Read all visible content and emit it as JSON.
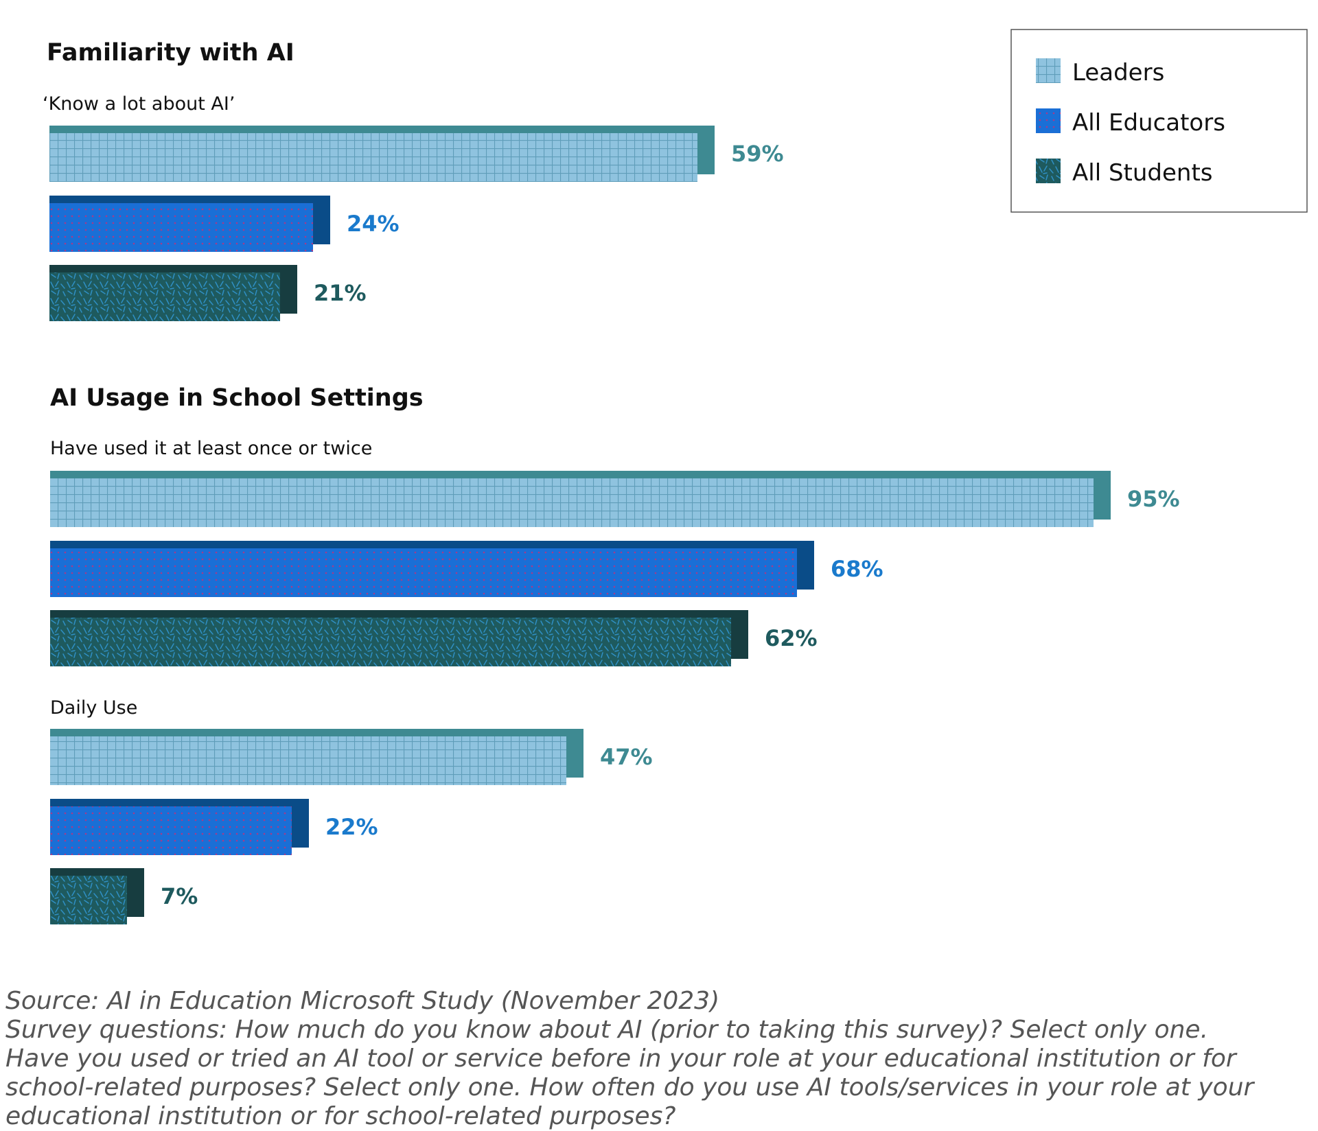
{
  "chart_data": {
    "type": "bar",
    "orientation": "horizontal",
    "legend": {
      "position": "top-right",
      "entries": [
        "Leaders",
        "All Educators",
        "All Students"
      ]
    },
    "series_colors": {
      "Leaders": "#8fc3df",
      "All Educators": "#1a6fd6",
      "All Students": "#1e5a5e"
    },
    "value_label_colors": {
      "Leaders": "#3e8a92",
      "All Educators": "#1a7acc",
      "All Students": "#1e5a5e"
    },
    "xlim": [
      0,
      100
    ],
    "value_suffix": "%",
    "sections": [
      {
        "title": "Familiarity with AI",
        "groups": [
          {
            "label": "‘Know a lot about AI’",
            "bars": [
              {
                "series": "Leaders",
                "value": 59,
                "label": "59%"
              },
              {
                "series": "All Educators",
                "value": 24,
                "label": "24%"
              },
              {
                "series": "All Students",
                "value": 21,
                "label": "21%"
              }
            ]
          }
        ]
      },
      {
        "title": "AI Usage in School Settings",
        "groups": [
          {
            "label": "Have used it at least once or twice",
            "bars": [
              {
                "series": "Leaders",
                "value": 95,
                "label": "95%"
              },
              {
                "series": "All Educators",
                "value": 68,
                "label": "68%"
              },
              {
                "series": "All Students",
                "value": 62,
                "label": "62%"
              }
            ]
          },
          {
            "label": "Daily Use",
            "bars": [
              {
                "series": "Leaders",
                "value": 47,
                "label": "47%"
              },
              {
                "series": "All Educators",
                "value": 22,
                "label": "22%"
              },
              {
                "series": "All Students",
                "value": 7,
                "label": "7%"
              }
            ]
          }
        ]
      }
    ]
  },
  "source": {
    "lines": [
      "Source: AI in Education Microsoft Study (November 2023)",
      "Survey questions: How much do you know about AI (prior to taking this survey)? Select only one.",
      "Have you used or tried an AI tool or service before in your role at your educational institution or for",
      "school-related purposes? Select only one. How often do you use AI tools/services in your role at your",
      "educational institution or for school-related purposes?"
    ]
  }
}
